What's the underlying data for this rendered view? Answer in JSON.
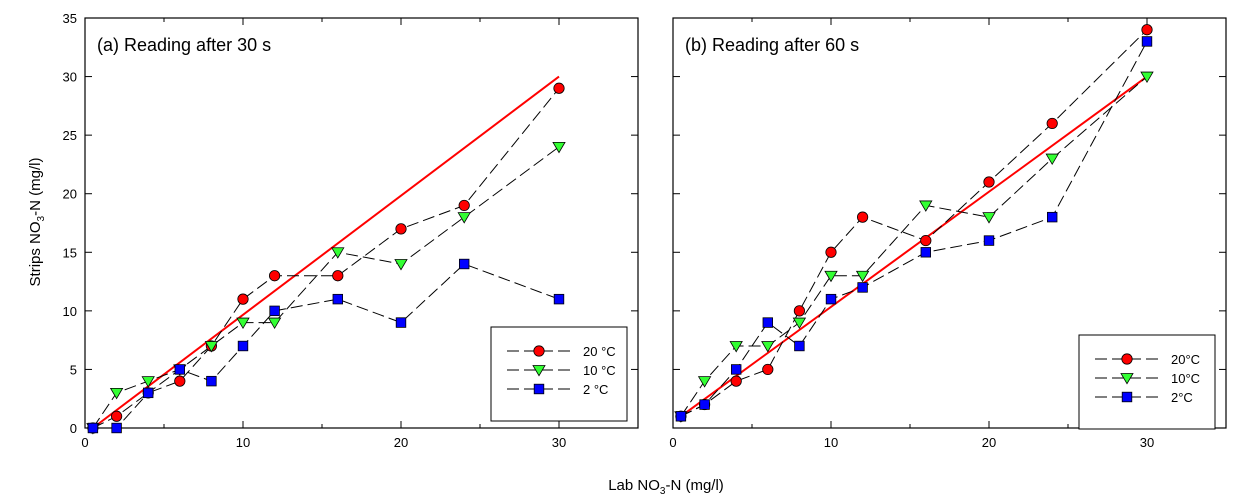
{
  "figure": {
    "xlabel_main": "Lab NO",
    "xlabel_sub": "3",
    "xlabel_rest": "-N (mg/l)",
    "ylabel_main": "Strips NO",
    "ylabel_sub": "3",
    "ylabel_rest": "-N (mg/l)"
  },
  "chart_data": [
    {
      "type": "line",
      "title": "(a) Reading after 30 s",
      "xlim": [
        0,
        35
      ],
      "ylim": [
        0,
        35
      ],
      "xticks": [
        0,
        10,
        20,
        30
      ],
      "yticks": [
        0,
        5,
        10,
        15,
        20,
        25,
        30,
        35
      ],
      "legend_position": "bottom-right",
      "reference_line": {
        "x": [
          0.5,
          30
        ],
        "y": [
          0,
          30
        ],
        "color": "#ff0000"
      },
      "series": [
        {
          "name": "20 °C",
          "marker": "circle",
          "color": "#ff0000",
          "x": [
            0.5,
            2,
            4,
            6,
            8,
            10,
            12,
            16,
            20,
            24,
            30
          ],
          "y": [
            0,
            1,
            3,
            4,
            7,
            11,
            13,
            13,
            17,
            19,
            29
          ]
        },
        {
          "name": "10 °C",
          "marker": "triangle-down",
          "color": "#33ff33",
          "x": [
            0.5,
            2,
            4,
            6,
            8,
            10,
            12,
            16,
            20,
            24,
            30
          ],
          "y": [
            0,
            3,
            4,
            5,
            7,
            9,
            9,
            15,
            14,
            18,
            24
          ]
        },
        {
          "name": "2 °C",
          "marker": "square",
          "color": "#0000ff",
          "x": [
            0.5,
            2,
            4,
            6,
            8,
            10,
            12,
            16,
            20,
            24,
            30
          ],
          "y": [
            0,
            0,
            3,
            5,
            4,
            7,
            10,
            11,
            9,
            14,
            11
          ]
        }
      ]
    },
    {
      "type": "line",
      "title": "(b) Reading after 60 s",
      "xlim": [
        0,
        35
      ],
      "ylim": [
        0,
        35
      ],
      "xticks": [
        0,
        10,
        20,
        30
      ],
      "yticks": [
        0,
        5,
        10,
        15,
        20,
        25,
        30,
        35
      ],
      "legend_position": "bottom-right",
      "reference_line": {
        "x": [
          0.5,
          30
        ],
        "y": [
          1,
          30
        ],
        "color": "#ff0000"
      },
      "series": [
        {
          "name": "20°C",
          "marker": "circle",
          "color": "#ff0000",
          "x": [
            0.5,
            2,
            4,
            6,
            8,
            10,
            12,
            16,
            20,
            24,
            30
          ],
          "y": [
            1,
            2,
            4,
            5,
            10,
            15,
            18,
            16,
            21,
            26,
            34
          ]
        },
        {
          "name": "10°C",
          "marker": "triangle-down",
          "color": "#33ff33",
          "x": [
            0.5,
            2,
            4,
            6,
            8,
            10,
            12,
            16,
            20,
            24,
            30
          ],
          "y": [
            1,
            4,
            7,
            7,
            9,
            13,
            13,
            19,
            18,
            23,
            30
          ]
        },
        {
          "name": "2°C",
          "marker": "square",
          "color": "#0000ff",
          "x": [
            0.5,
            2,
            4,
            6,
            8,
            10,
            12,
            16,
            20,
            24,
            30
          ],
          "y": [
            1,
            2,
            5,
            9,
            7,
            11,
            12,
            15,
            16,
            18,
            33
          ]
        }
      ]
    }
  ]
}
